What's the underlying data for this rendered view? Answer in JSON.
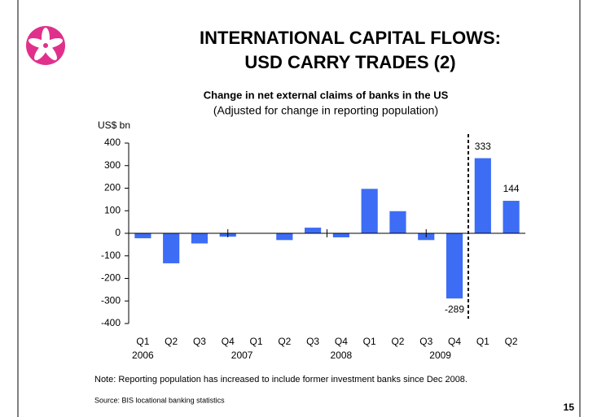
{
  "title": [
    "INTERNATIONAL CAPITAL FLOWS:",
    "USD CARRY TRADES (2)"
  ],
  "chart_data": {
    "type": "bar",
    "title": "Change in net external claims of banks in the US",
    "subtitle": "(Adjusted for change in reporting population)",
    "y_label": "US$ bn",
    "categories": [
      "Q1",
      "Q2",
      "Q3",
      "Q4",
      "Q1",
      "Q2",
      "Q3",
      "Q4",
      "Q1",
      "Q2",
      "Q3",
      "Q4",
      "Q1",
      "Q2"
    ],
    "x_groups": [
      "2006",
      "2007",
      "2008",
      "2009"
    ],
    "values": [
      -22,
      -133,
      -45,
      -15,
      0,
      -30,
      25,
      -18,
      197,
      98,
      -30,
      -289,
      333,
      144
    ],
    "value_labels": [
      null,
      null,
      null,
      null,
      null,
      null,
      null,
      null,
      null,
      null,
      null,
      "-289",
      "333",
      "144"
    ],
    "color": "#3d6cf5",
    "ylim": [
      -400,
      400
    ],
    "yticks": [
      -400,
      -300,
      -200,
      -100,
      0,
      100,
      200,
      300,
      400
    ]
  },
  "note": "Note: Reporting population has increased to include former investment banks since Dec 2008.",
  "source": "Source: BIS locational banking statistics",
  "page_number": "15"
}
